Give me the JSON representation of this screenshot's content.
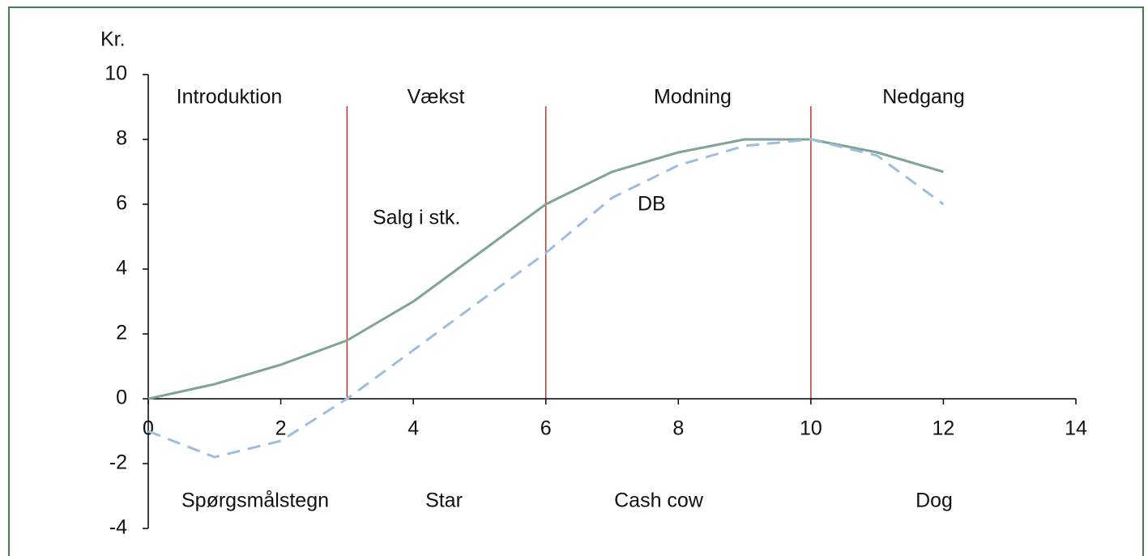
{
  "chart_data": {
    "type": "line",
    "ylabel": "Kr.",
    "x": [
      0,
      1,
      2,
      3,
      4,
      5,
      6,
      7,
      8,
      9,
      10,
      11,
      12
    ],
    "series": [
      {
        "name": "Salg i stk.",
        "color": "#7fa495",
        "dash": false,
        "values": [
          0,
          0.45,
          1.05,
          1.8,
          3,
          4.5,
          6,
          7,
          7.6,
          8,
          8,
          7.6,
          7
        ]
      },
      {
        "name": "DB",
        "color": "#9dbde0",
        "dash": true,
        "values": [
          -1,
          -1.8,
          -1.3,
          0,
          1.5,
          3,
          4.5,
          6.2,
          7.2,
          7.8,
          8,
          7.5,
          6
        ]
      }
    ],
    "phase_dividers": [
      3,
      6,
      10
    ],
    "divider_color": "#c0392b",
    "phases": [
      "Introduktion",
      "Vækst",
      "Modning",
      "Nedgang"
    ],
    "portfolio": [
      "Spørgsmålstegn",
      "Star",
      "Cash cow",
      "Dog"
    ],
    "xlim": [
      0,
      14
    ],
    "xticks": [
      0,
      2,
      4,
      6,
      8,
      10,
      12,
      14
    ],
    "ylim": [
      -4,
      10
    ],
    "yticks": [
      -4,
      -2,
      0,
      2,
      4,
      6,
      8,
      10
    ]
  }
}
